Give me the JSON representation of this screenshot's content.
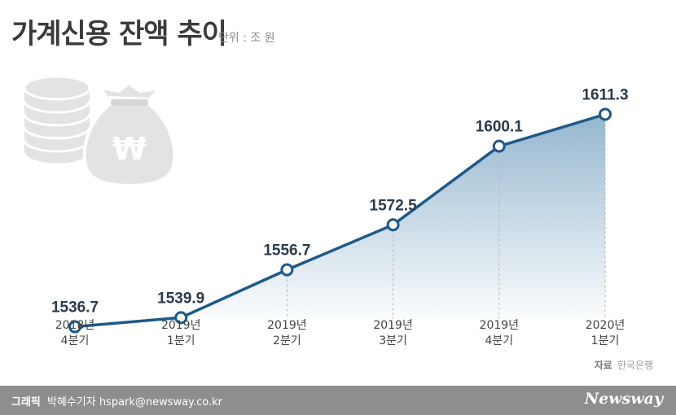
{
  "header": {
    "title": "가계신용 잔액 추이",
    "unit": "단위 : 조 원"
  },
  "chart_data": {
    "type": "area",
    "title": "가계신용 잔액 추이",
    "unit": "단위 : 조 원",
    "categories": [
      [
        "2018년",
        "4분기"
      ],
      [
        "2019년",
        "1분기"
      ],
      [
        "2019년",
        "2분기"
      ],
      [
        "2019년",
        "3분기"
      ],
      [
        "2019년",
        "4분기"
      ],
      [
        "2020년",
        "1분기"
      ]
    ],
    "values": [
      1536.7,
      1539.9,
      1556.7,
      1572.5,
      1600.1,
      1611.3
    ],
    "value_labels": [
      "1536.7",
      "1539.9",
      "1556.7",
      "1572.5",
      "1600.1",
      "1611.3"
    ],
    "ylim": [
      1480,
      1640
    ],
    "grid": false,
    "legend": "none",
    "line_color": "#1d5a8a",
    "fill_color": "#8fb3cc"
  },
  "icons": [
    "coin-stack-icon",
    "money-bag-icon"
  ],
  "source": {
    "label": "자료",
    "name": "한국은행"
  },
  "footer": {
    "credit_label": "그래픽",
    "credit": "박혜수기자 hspark@newsway.co.kr",
    "logo": "Newsway"
  }
}
